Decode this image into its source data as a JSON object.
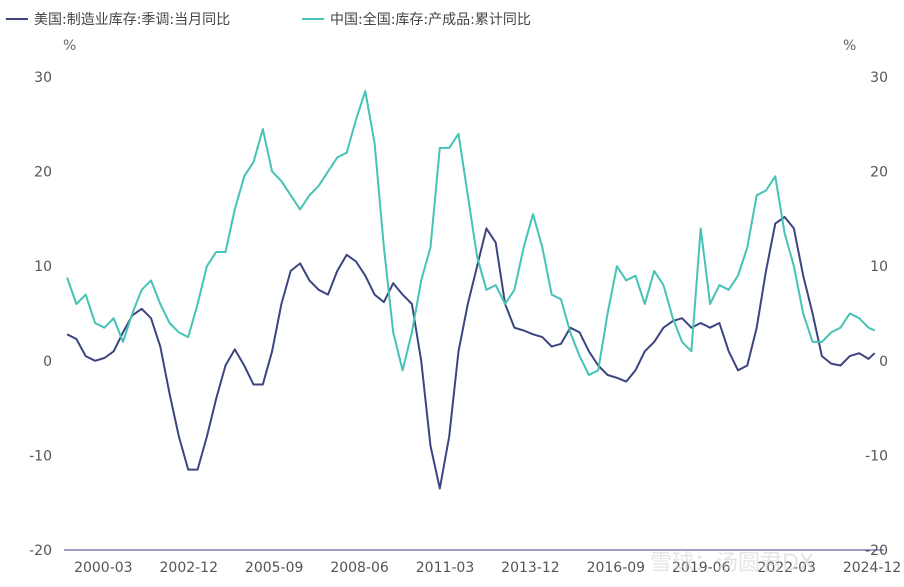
{
  "chart_data": {
    "type": "line",
    "legend_position": "top-left",
    "grid": false,
    "left_axis": {
      "unit": "%",
      "ylim": [
        -20,
        30
      ],
      "ticks": [
        30,
        20,
        10,
        0,
        -10,
        -20
      ]
    },
    "right_axis": {
      "unit": "%",
      "ylim": [
        -20,
        30
      ],
      "ticks": [
        30,
        20,
        10,
        0,
        -10,
        -20
      ]
    },
    "x_tick_labels": [
      "2000-03",
      "2002-12",
      "2005-09",
      "2008-06",
      "2011-03",
      "2013-12",
      "2016-09",
      "2019-06",
      "2022-03",
      "2024-12"
    ],
    "x_range": [
      1998.9,
      2025.3
    ],
    "series": [
      {
        "name": "美国:制造业库存:季调:当月同比",
        "color": "#3c4580",
        "axis": "left",
        "x": [
          1999.0,
          1999.3,
          1999.6,
          1999.9,
          2000.2,
          2000.5,
          2000.8,
          2001.1,
          2001.4,
          2001.7,
          2002.0,
          2002.3,
          2002.6,
          2002.9,
          2003.2,
          2003.5,
          2003.8,
          2004.1,
          2004.4,
          2004.7,
          2005.0,
          2005.3,
          2005.6,
          2005.9,
          2006.2,
          2006.5,
          2006.8,
          2007.1,
          2007.4,
          2007.7,
          2008.0,
          2008.3,
          2008.6,
          2008.9,
          2009.2,
          2009.5,
          2009.8,
          2010.1,
          2010.4,
          2010.7,
          2011.0,
          2011.3,
          2011.6,
          2011.9,
          2012.2,
          2012.5,
          2012.8,
          2013.1,
          2013.4,
          2013.7,
          2014.0,
          2014.3,
          2014.6,
          2014.9,
          2015.2,
          2015.5,
          2015.8,
          2016.1,
          2016.4,
          2016.7,
          2017.0,
          2017.3,
          2017.6,
          2017.9,
          2018.2,
          2018.5,
          2018.8,
          2019.1,
          2019.4,
          2019.7,
          2020.0,
          2020.3,
          2020.6,
          2020.9,
          2021.2,
          2021.5,
          2021.8,
          2022.1,
          2022.4,
          2022.7,
          2023.0,
          2023.3,
          2023.6,
          2023.9,
          2024.2,
          2024.5,
          2024.8,
          2025.0
        ],
        "values": [
          2.8,
          2.3,
          0.5,
          0.0,
          0.3,
          1.0,
          3.0,
          4.8,
          5.5,
          4.5,
          1.5,
          -3.5,
          -8.0,
          -11.5,
          -11.5,
          -8.0,
          -4.0,
          -0.5,
          1.2,
          -0.5,
          -2.5,
          -2.5,
          1.0,
          6.0,
          9.5,
          10.3,
          8.5,
          7.5,
          7.0,
          9.5,
          11.2,
          10.5,
          9.0,
          7.0,
          6.2,
          8.2,
          7.0,
          6.0,
          0.0,
          -9.0,
          -13.5,
          -8.0,
          1.0,
          6.0,
          10.0,
          14.0,
          12.5,
          6.0,
          3.5,
          3.2,
          2.8,
          2.5,
          1.5,
          1.8,
          3.5,
          3.0,
          1.0,
          -0.5,
          -1.5,
          -1.8,
          -2.2,
          -1.0,
          1.0,
          2.0,
          3.5,
          4.2,
          4.5,
          3.5,
          4.0,
          3.5,
          4.0,
          1.0,
          -1.0,
          -0.5,
          3.5,
          9.5,
          14.5,
          15.2,
          14.0,
          9.0,
          5.0,
          0.5,
          -0.3,
          -0.5,
          0.5,
          0.8,
          0.2,
          0.8
        ]
      },
      {
        "name": "中国:全国:库存:产成品:累计同比",
        "color": "#45c3b4",
        "axis": "left",
        "x": [
          1999.0,
          1999.3,
          1999.6,
          1999.9,
          2000.2,
          2000.5,
          2000.8,
          2001.1,
          2001.4,
          2001.7,
          2002.0,
          2002.3,
          2002.6,
          2002.9,
          2003.2,
          2003.5,
          2003.8,
          2004.1,
          2004.4,
          2004.7,
          2005.0,
          2005.3,
          2005.6,
          2005.9,
          2006.2,
          2006.5,
          2006.8,
          2007.1,
          2007.4,
          2007.7,
          2008.0,
          2008.3,
          2008.6,
          2008.9,
          2009.2,
          2009.5,
          2009.8,
          2010.1,
          2010.4,
          2010.7,
          2011.0,
          2011.3,
          2011.6,
          2011.9,
          2012.2,
          2012.5,
          2012.8,
          2013.1,
          2013.4,
          2013.7,
          2014.0,
          2014.3,
          2014.6,
          2014.9,
          2015.2,
          2015.5,
          2015.8,
          2016.1,
          2016.4,
          2016.7,
          2017.0,
          2017.3,
          2017.6,
          2017.9,
          2018.2,
          2018.5,
          2018.8,
          2019.1,
          2019.4,
          2019.7,
          2020.0,
          2020.3,
          2020.6,
          2020.9,
          2021.2,
          2021.5,
          2021.8,
          2022.1,
          2022.4,
          2022.7,
          2023.0,
          2023.3,
          2023.6,
          2023.9,
          2024.2,
          2024.5,
          2024.8,
          2025.0
        ],
        "values": [
          8.8,
          6.0,
          7.0,
          4.0,
          3.5,
          4.5,
          2.0,
          5.0,
          7.5,
          8.5,
          6.0,
          4.0,
          3.0,
          2.5,
          6.0,
          10.0,
          11.5,
          11.5,
          16.0,
          19.5,
          21.0,
          24.5,
          20.0,
          19.0,
          17.5,
          16.0,
          17.5,
          18.5,
          20.0,
          21.5,
          22.0,
          25.5,
          28.5,
          23.0,
          12.0,
          3.0,
          -1.0,
          3.0,
          8.5,
          12.0,
          22.5,
          22.5,
          24.0,
          17.5,
          11.0,
          7.5,
          8.0,
          6.0,
          7.5,
          12.0,
          15.5,
          12.0,
          7.0,
          6.5,
          3.0,
          0.5,
          -1.5,
          -1.0,
          5.0,
          10.0,
          8.5,
          9.0,
          6.0,
          9.5,
          8.0,
          4.5,
          2.0,
          1.0,
          14.0,
          6.0,
          8.0,
          7.5,
          9.0,
          12.0,
          17.5,
          18.0,
          19.5,
          13.5,
          10.0,
          5.0,
          2.0,
          2.0,
          3.0,
          3.5,
          5.0,
          4.5,
          3.5,
          3.2
        ]
      }
    ]
  },
  "watermark": "雪球：汤圆君DX"
}
